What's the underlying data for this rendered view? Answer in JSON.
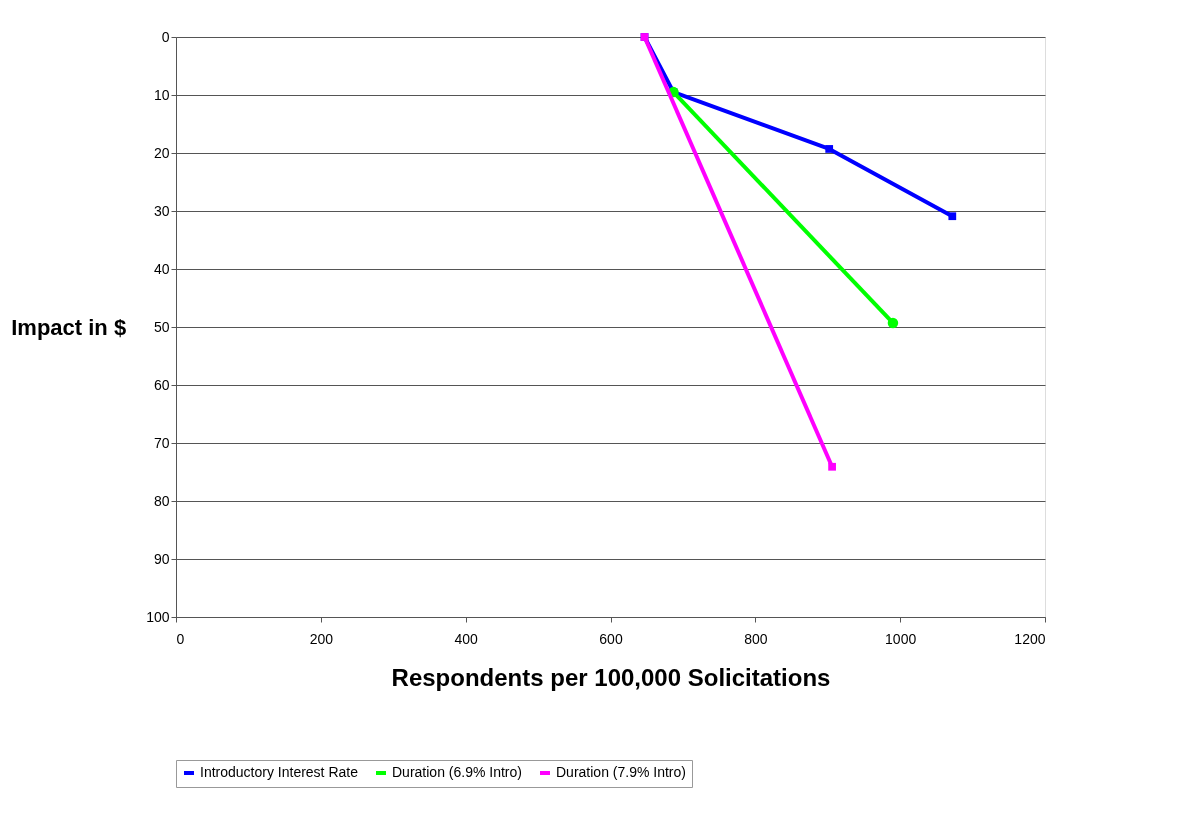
{
  "chart_data": {
    "type": "line",
    "xlabel": "Respondents per 100,000 Solicitations",
    "ylabel": "Impact in $",
    "xlim": [
      0,
      1200
    ],
    "xticks": [
      0,
      200,
      400,
      600,
      800,
      1000,
      1200
    ],
    "ylim": [
      100,
      0
    ],
    "yticks": [
      0,
      10,
      20,
      30,
      40,
      50,
      60,
      70,
      80,
      90,
      100
    ],
    "grid": "y",
    "legend": "bottom",
    "series": [
      {
        "name": "Introductory Interest Rate",
        "color": "#0000ff",
        "marker": "square",
        "x": [
          647,
          687,
          902,
          1072
        ],
        "values": [
          0,
          9.5,
          19.3,
          30.9
        ]
      },
      {
        "name": "Duration (6.9% Intro)",
        "color": "#00ff00",
        "marker": "circle",
        "x": [
          687,
          990
        ],
        "values": [
          9.5,
          49.3
        ]
      },
      {
        "name": "Duration (7.9% Intro)",
        "color": "#ff00ff",
        "marker": "square",
        "x": [
          647,
          906
        ],
        "values": [
          0,
          74.1
        ]
      }
    ]
  }
}
